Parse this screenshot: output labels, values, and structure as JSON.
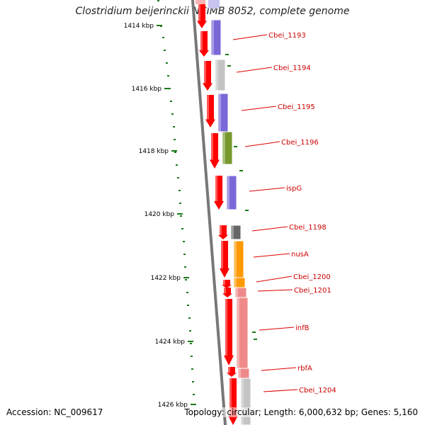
{
  "title": "Clostridium beijerinckii NCIMB 8052, complete genome",
  "footer": {
    "accession": "Accession: NC_009617",
    "summary": "Topology: circular; Length: 6,000,632 bp; Genes: 5,160"
  },
  "ticks": [
    {
      "label": "1414 kbp"
    },
    {
      "label": "1416 kbp"
    },
    {
      "label": "1418 kbp"
    },
    {
      "label": "1420 kbp"
    },
    {
      "label": "1422 kbp"
    },
    {
      "label": "1424 kbp"
    },
    {
      "label": "1426 kbp"
    }
  ],
  "genes": [
    {
      "label": "Cbei_1193",
      "color": "#7b68d8"
    },
    {
      "label": "Cbei_1194",
      "color": "#c4c4c4"
    },
    {
      "label": "Cbei_1195",
      "color": "#7b68d8"
    },
    {
      "label": "Cbei_1196",
      "color": "#77992d"
    },
    {
      "label": "ispG",
      "color": "#7b68d8"
    },
    {
      "label": "Cbei_1198",
      "color": "#666666"
    },
    {
      "label": "nusA",
      "color": "#ff9900"
    },
    {
      "label": "Cbei_1200",
      "color": "#ff9900"
    },
    {
      "label": "Cbei_1201",
      "color": "#f08a8a"
    },
    {
      "label": "infB",
      "color": "#f08a8a"
    },
    {
      "label": "rbfA",
      "color": "#f08a8a"
    },
    {
      "label": "Cbei_1204",
      "color": "#c4c4c4"
    }
  ],
  "colors": {
    "cds": "#ff0000",
    "gc_skew": "#1a7a1a",
    "backbone": "#777777",
    "label_line": "#dd0000",
    "label_text": "#cc0000"
  }
}
